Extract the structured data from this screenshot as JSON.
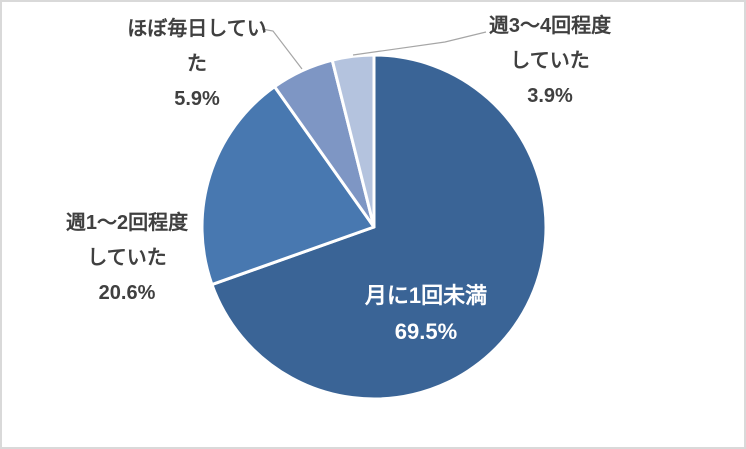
{
  "chart_data": {
    "type": "pie",
    "title": "",
    "categories": [
      "月に1回未満",
      "週1〜2回程度していた",
      "ほぼ毎日していた",
      "週3〜4回程度していた"
    ],
    "values": [
      69.5,
      20.6,
      5.9,
      3.9
    ],
    "value_labels": [
      "69.5%",
      "20.6%",
      "5.9%",
      "3.9%"
    ],
    "unit": "%",
    "colors": [
      "#3A6496",
      "#4878B0",
      "#7E96C4",
      "#B4C3DE"
    ],
    "start_angle_deg": 0,
    "direction": "clockwise",
    "legend": "none",
    "slice_separator_color": "#FFFFFF",
    "leader_line_color": "#A6A6A6",
    "label_text_color": "#404040",
    "inside_label_text_color": "#FFFFFF",
    "background_color": "#FFFFFF",
    "frame_border_color": "#D9D9D9"
  },
  "labels": {
    "inside": {
      "category_line1": "月に1回未満",
      "percent": "69.5%"
    },
    "left": {
      "category_line1": "週1〜2回程度",
      "category_line2": "していた",
      "percent": "20.6%"
    },
    "top_left": {
      "category_line1": "ほぼ毎日してい",
      "category_line2": "た",
      "percent": "5.9%"
    },
    "top_right": {
      "category_line1": "週3〜4回程度",
      "category_line2": "していた",
      "percent": "3.9%"
    }
  }
}
